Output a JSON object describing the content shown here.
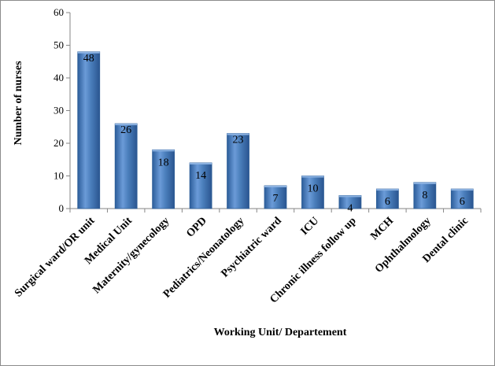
{
  "chart_data": {
    "type": "bar",
    "title": "",
    "xlabel": "Working  Unit/  Departement",
    "ylabel": "Number  of nurses",
    "ylim": [
      0,
      60
    ],
    "yticks": [
      0,
      10,
      20,
      30,
      40,
      50,
      60
    ],
    "grid": false,
    "categories": [
      "Surgical ward/OR unit",
      "Medical Unit",
      "Maternity/gynecology",
      "OPD",
      "Pediatrics/Neonatology",
      "Psychiatric ward",
      "ICU",
      "Chronic illness follow up",
      "MCH",
      "Ophthalmology",
      "Dental clinic"
    ],
    "values": [
      48,
      26,
      18,
      14,
      23,
      7,
      10,
      4,
      6,
      8,
      6
    ],
    "bar_color": "#4a7ebb"
  }
}
